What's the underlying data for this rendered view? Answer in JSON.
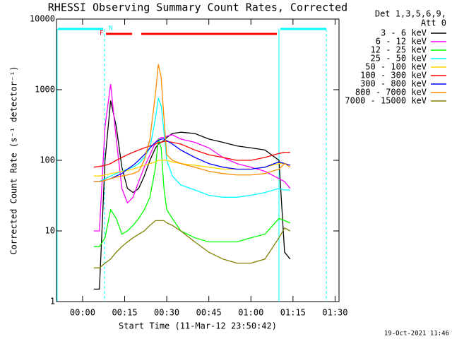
{
  "chart_data": {
    "type": "line",
    "title": "RHESSI Observing Summary Count Rates, Corrected",
    "x_label": "Start Time (11-Mar-12 23:50:42)",
    "y_label": "Corrected Count Rate (s⁻¹ detector⁻¹)",
    "legend_title": [
      "Det 1,3,5,6,9,",
      "Att 0"
    ],
    "flag_labels": [
      "F",
      "N"
    ],
    "timestamp": "19-Oct-2021 11:46",
    "log_y": true,
    "xlim": [
      -9.3,
      91.4
    ],
    "ylim": [
      1,
      10000
    ],
    "yticks": [
      1,
      10,
      100,
      1000,
      10000
    ],
    "xticks": [
      {
        "value": 0,
        "label": "00:00"
      },
      {
        "value": 15,
        "label": "00:15"
      },
      {
        "value": 30,
        "label": "00:30"
      },
      {
        "value": 45,
        "label": "00:45"
      },
      {
        "value": 60,
        "label": "01:00"
      },
      {
        "value": 75,
        "label": "01:15"
      },
      {
        "value": 90,
        "label": "01:30"
      }
    ],
    "x": [
      4,
      6,
      8,
      10,
      12,
      14,
      16,
      18,
      20,
      22,
      24,
      26,
      27,
      28,
      29,
      30,
      32,
      35,
      40,
      45,
      50,
      55,
      60,
      65,
      70,
      72,
      74
    ],
    "series": [
      {
        "name": "3 - 6 keV",
        "color": "#000000",
        "values": [
          1.5,
          1.5,
          100,
          700,
          300,
          80,
          40,
          35,
          40,
          60,
          100,
          150,
          170,
          180,
          190,
          210,
          240,
          250,
          240,
          200,
          180,
          160,
          150,
          140,
          100,
          5,
          4
        ]
      },
      {
        "name": "6 - 12 keV",
        "color": "#ff00ff",
        "values": [
          10,
          10,
          300,
          1200,
          200,
          40,
          25,
          30,
          50,
          80,
          120,
          180,
          200,
          210,
          210,
          220,
          230,
          200,
          180,
          150,
          110,
          90,
          80,
          70,
          55,
          50,
          40
        ]
      },
      {
        "name": "12 - 25 keV",
        "color": "#00ff00",
        "values": [
          6,
          6,
          8,
          20,
          15,
          9,
          10,
          12,
          15,
          20,
          30,
          80,
          200,
          150,
          40,
          20,
          15,
          10,
          8,
          7,
          7,
          7,
          8,
          9,
          15,
          14,
          13
        ]
      },
      {
        "name": "25 - 50 keV",
        "color": "#00ffff",
        "values": [
          50,
          50,
          55,
          60,
          65,
          70,
          75,
          80,
          90,
          110,
          150,
          400,
          750,
          600,
          250,
          100,
          60,
          45,
          38,
          32,
          30,
          30,
          32,
          35,
          40,
          38,
          38
        ]
      },
      {
        "name": "50 - 100 keV",
        "color": "#ffd700",
        "values": [
          60,
          60,
          62,
          65,
          67,
          70,
          72,
          75,
          80,
          85,
          90,
          95,
          100,
          100,
          100,
          100,
          95,
          90,
          85,
          80,
          75,
          75,
          75,
          80,
          90,
          90,
          85
        ]
      },
      {
        "name": "100 - 300 keV",
        "color": "#ff0000",
        "values": [
          80,
          82,
          85,
          90,
          100,
          110,
          120,
          130,
          140,
          150,
          160,
          170,
          180,
          180,
          185,
          185,
          180,
          170,
          140,
          120,
          110,
          100,
          100,
          110,
          125,
          130,
          130
        ]
      },
      {
        "name": "300 - 800 keV",
        "color": "#0000ff",
        "values": [
          50,
          50,
          52,
          55,
          60,
          65,
          75,
          85,
          100,
          120,
          150,
          180,
          190,
          200,
          200,
          190,
          170,
          140,
          110,
          90,
          80,
          75,
          75,
          80,
          95,
          90,
          85
        ]
      },
      {
        "name": "800 - 7000 keV",
        "color": "#ff8c00",
        "values": [
          50,
          50,
          52,
          55,
          58,
          60,
          62,
          65,
          70,
          100,
          200,
          900,
          2300,
          1500,
          400,
          120,
          100,
          90,
          80,
          70,
          65,
          62,
          62,
          65,
          75,
          90,
          80
        ]
      },
      {
        "name": "7000 - 15000 keV",
        "color": "#808000",
        "values": [
          3,
          3,
          3.5,
          4,
          5,
          6,
          7,
          8,
          9,
          10,
          12,
          14,
          14,
          14,
          14,
          13,
          12,
          10,
          7,
          5,
          4,
          3.5,
          3.5,
          4,
          8,
          11,
          10
        ]
      }
    ]
  }
}
